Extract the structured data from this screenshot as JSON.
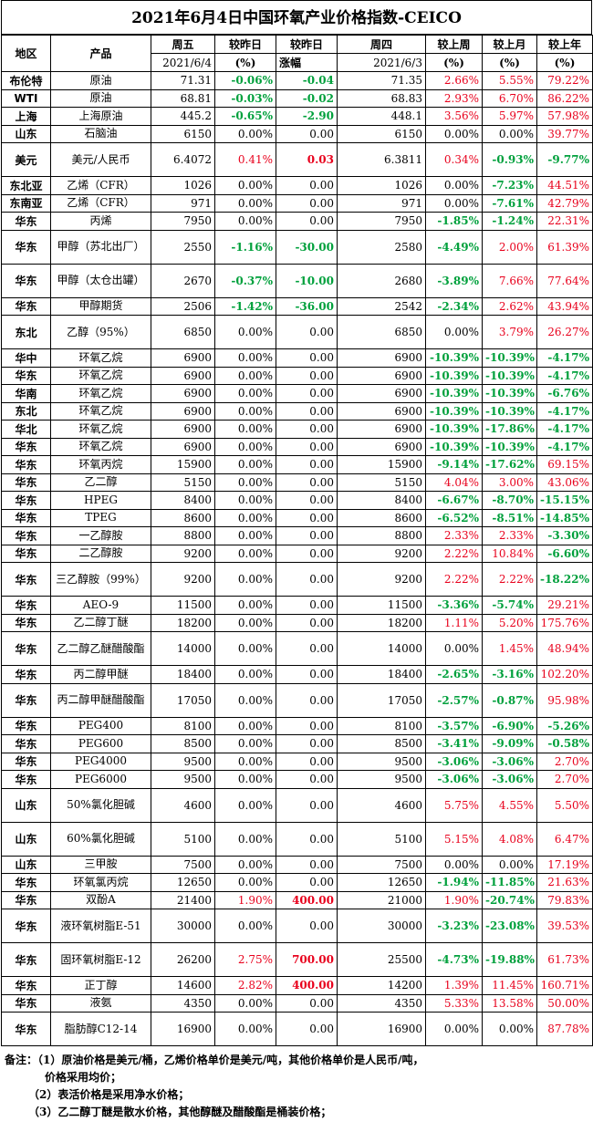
{
  "title": "2021年6月4日中国环氧产业价格指数-CEICO",
  "headers": {
    "region": "地区",
    "product": "产品",
    "fri": "周五",
    "fri_date": "2021/6/4",
    "chg_pct": "较昨日",
    "chg_pct_unit": "(%)",
    "chg_amt": "较昨日",
    "chg_amt_unit": "涨幅",
    "thu": "周四",
    "thu_date": "2021/6/3",
    "wk": "较上周",
    "wk_unit": "(%)",
    "mo": "较上月",
    "mo_unit": "(%)",
    "yr": "较上年",
    "yr_unit": "(%)"
  },
  "rows": [
    [
      "布伦特",
      "原油",
      "71.31",
      "-0.06%",
      "-0.04",
      "71.35",
      "2.66%",
      "5.55%",
      "79.22%"
    ],
    [
      "WTI",
      "原油",
      "68.81",
      "-0.03%",
      "-0.02",
      "68.83",
      "2.93%",
      "6.70%",
      "86.22%"
    ],
    [
      "上海",
      "上海原油",
      "445.2",
      "-0.65%",
      "-2.90",
      "448.1",
      "3.56%",
      "5.97%",
      "57.98%"
    ],
    [
      "山东",
      "石脑油",
      "6150",
      "0.00%",
      "0.00",
      "6150",
      "0.00%",
      "0.00%",
      "39.77%"
    ],
    [
      "美元",
      "美元/人民币",
      "6.4072",
      "0.41%",
      "0.03",
      "6.3811",
      "0.34%",
      "-0.93%",
      "-9.77%"
    ],
    [
      "东北亚",
      "乙烯（CFR）",
      "1026",
      "0.00%",
      "0.00",
      "1026",
      "0.00%",
      "-7.23%",
      "44.51%"
    ],
    [
      "东南亚",
      "乙烯（CFR）",
      "971",
      "0.00%",
      "0.00",
      "971",
      "0.00%",
      "-7.61%",
      "42.79%"
    ],
    [
      "华东",
      "丙烯",
      "7950",
      "0.00%",
      "0.00",
      "7950",
      "-1.85%",
      "-1.24%",
      "22.31%"
    ],
    [
      "华东",
      "甲醇（苏北出厂）",
      "2550",
      "-1.16%",
      "-30.00",
      "2580",
      "-4.49%",
      "2.00%",
      "61.39%"
    ],
    [
      "华东",
      "甲醇（太仓出罐）",
      "2670",
      "-0.37%",
      "-10.00",
      "2680",
      "-3.89%",
      "7.66%",
      "77.64%"
    ],
    [
      "华东",
      "甲醇期货",
      "2506",
      "-1.42%",
      "-36.00",
      "2542",
      "-2.34%",
      "2.62%",
      "43.94%"
    ],
    [
      "东北",
      "乙醇（95%）",
      "6850",
      "0.00%",
      "0.00",
      "6850",
      "0.00%",
      "3.79%",
      "26.27%"
    ],
    [
      "华中",
      "环氧乙烷",
      "6900",
      "0.00%",
      "0.00",
      "6900",
      "-10.39%",
      "-10.39%",
      "-4.17%"
    ],
    [
      "华东",
      "环氧乙烷",
      "6900",
      "0.00%",
      "0.00",
      "6900",
      "-10.39%",
      "-10.39%",
      "-4.17%"
    ],
    [
      "华南",
      "环氧乙烷",
      "6900",
      "0.00%",
      "0.00",
      "6900",
      "-10.39%",
      "-10.39%",
      "-6.76%"
    ],
    [
      "东北",
      "环氧乙烷",
      "6900",
      "0.00%",
      "0.00",
      "6900",
      "-10.39%",
      "-10.39%",
      "-4.17%"
    ],
    [
      "华北",
      "环氧乙烷",
      "6900",
      "0.00%",
      "0.00",
      "6900",
      "-10.39%",
      "-17.86%",
      "-4.17%"
    ],
    [
      "华东",
      "环氧乙烷",
      "6900",
      "0.00%",
      "0.00",
      "6900",
      "-10.39%",
      "-10.39%",
      "-4.17%"
    ],
    [
      "华东",
      "环氧丙烷",
      "15900",
      "0.00%",
      "0.00",
      "15900",
      "-9.14%",
      "-17.62%",
      "69.15%"
    ],
    [
      "华东",
      "乙二醇",
      "5150",
      "0.00%",
      "0.00",
      "5150",
      "4.04%",
      "3.00%",
      "43.06%"
    ],
    [
      "华东",
      "HPEG",
      "8400",
      "0.00%",
      "0.00",
      "8400",
      "-6.67%",
      "-8.70%",
      "-15.15%"
    ],
    [
      "华东",
      "TPEG",
      "8600",
      "0.00%",
      "0.00",
      "8600",
      "-6.52%",
      "-8.51%",
      "-14.85%"
    ],
    [
      "华东",
      "一乙醇胺",
      "8800",
      "0.00%",
      "0.00",
      "8800",
      "2.33%",
      "2.33%",
      "-3.30%"
    ],
    [
      "华东",
      "二乙醇胺",
      "9200",
      "0.00%",
      "0.00",
      "9200",
      "2.22%",
      "10.84%",
      "-6.60%"
    ],
    [
      "华东",
      "三乙醇胺（99%）",
      "9200",
      "0.00%",
      "0.00",
      "9200",
      "2.22%",
      "2.22%",
      "-18.22%"
    ],
    [
      "华东",
      "AEO-9",
      "11500",
      "0.00%",
      "0.00",
      "11500",
      "-3.36%",
      "-5.74%",
      "29.21%"
    ],
    [
      "华东",
      "乙二醇丁醚",
      "18200",
      "0.00%",
      "0.00",
      "18200",
      "1.11%",
      "5.20%",
      "175.76%"
    ],
    [
      "华东",
      "乙二醇乙醚醋酸酯",
      "14000",
      "0.00%",
      "0.00",
      "14000",
      "0.00%",
      "1.45%",
      "48.94%"
    ],
    [
      "华东",
      "丙二醇甲醚",
      "18400",
      "0.00%",
      "0.00",
      "18400",
      "-2.65%",
      "-3.16%",
      "102.20%"
    ],
    [
      "华东",
      "丙二醇甲醚醋酸酯",
      "17050",
      "0.00%",
      "0.00",
      "17050",
      "-2.57%",
      "-0.87%",
      "95.98%"
    ],
    [
      "华东",
      "PEG400",
      "8100",
      "0.00%",
      "0.00",
      "8100",
      "-3.57%",
      "-6.90%",
      "-5.26%"
    ],
    [
      "华东",
      "PEG600",
      "8500",
      "0.00%",
      "0.00",
      "8500",
      "-3.41%",
      "-9.09%",
      "-0.58%"
    ],
    [
      "华东",
      "PEG4000",
      "9500",
      "0.00%",
      "0.00",
      "9500",
      "-3.06%",
      "-3.06%",
      "2.70%"
    ],
    [
      "华东",
      "PEG6000",
      "9500",
      "0.00%",
      "0.00",
      "9500",
      "-3.06%",
      "-3.06%",
      "2.70%"
    ],
    [
      "山东",
      "50%氯化胆碱",
      "4600",
      "0.00%",
      "0.00",
      "4600",
      "5.75%",
      "4.55%",
      "5.50%"
    ],
    [
      "山东",
      "60%氯化胆碱",
      "5100",
      "0.00%",
      "0.00",
      "5100",
      "5.15%",
      "4.08%",
      "6.47%"
    ],
    [
      "山东",
      "三甲胺",
      "7500",
      "0.00%",
      "0.00",
      "7500",
      "0.00%",
      "0.00%",
      "17.19%"
    ],
    [
      "华东",
      "环氧氯丙烷",
      "12650",
      "0.00%",
      "0.00",
      "12650",
      "-1.94%",
      "-11.85%",
      "21.63%"
    ],
    [
      "华东",
      "双酚A",
      "21400",
      "1.90%",
      "400.00",
      "21000",
      "1.90%",
      "-20.74%",
      "79.83%"
    ],
    [
      "华东",
      "液环氧树脂E-51",
      "30000",
      "0.00%",
      "0.00",
      "30000",
      "-3.23%",
      "-23.08%",
      "39.53%"
    ],
    [
      "华东",
      "固环氧树脂E-12",
      "26200",
      "2.75%",
      "700.00",
      "25500",
      "-4.73%",
      "-19.88%",
      "61.73%"
    ],
    [
      "华东",
      "正丁醇",
      "14600",
      "2.82%",
      "400.00",
      "14200",
      "1.39%",
      "11.45%",
      "160.71%"
    ],
    [
      "华东",
      "液氨",
      "4350",
      "0.00%",
      "0.00",
      "4350",
      "5.33%",
      "13.58%",
      "50.00%"
    ],
    [
      "华东",
      "脂肪醇C12-14",
      "16900",
      "0.00%",
      "0.00",
      "16900",
      "0.00%",
      "0.00%",
      "87.78%"
    ]
  ],
  "notes": {
    "label": "备注：",
    "n1a": "（1）原油价格是美元/桶，乙烯价格单价是美元/吨，其他价格单价是人民币/吨，",
    "n1b": "价格采用均价；",
    "n2": "（2）表活价格是采用净水价格；",
    "n3": "（3）乙二醇丁醚是散水价格，其他醇醚及醋酸酯是桶装价格；"
  }
}
